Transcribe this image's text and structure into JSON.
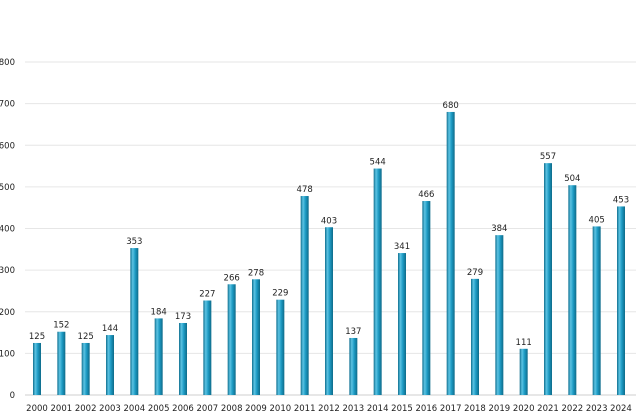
{
  "chart_data": {
    "type": "bar",
    "categories": [
      "2000",
      "2001",
      "2002",
      "2003",
      "2004",
      "2005",
      "2006",
      "2007",
      "2008",
      "2009",
      "2010",
      "2011",
      "2012",
      "2013",
      "2014",
      "2015",
      "2016",
      "2017",
      "2018",
      "2019",
      "2020",
      "2021",
      "2022",
      "2023",
      "2024"
    ],
    "values": [
      125,
      152,
      125,
      144,
      353,
      184,
      173,
      227,
      266,
      278,
      229,
      478,
      403,
      137,
      544,
      341,
      466,
      680,
      279,
      384,
      111,
      557,
      504,
      405,
      453
    ],
    "data_labels": [
      "125",
      "152",
      "125",
      "144",
      "353",
      "184",
      "173",
      "227",
      "266",
      "278",
      "229",
      "478",
      "403",
      "137",
      "544",
      "341",
      "466",
      "680",
      "279",
      "384",
      "111",
      "557",
      "504",
      "405",
      "453"
    ],
    "ylim": [
      0,
      800
    ],
    "yticks": [
      "0",
      "100",
      "200",
      "300",
      "400",
      "500",
      "600",
      "700",
      "800"
    ],
    "grid": true,
    "colors": {
      "bar_main": "#1d9bc4",
      "bar_light": "#5cc3e3",
      "bar_dark": "#0f6f8f"
    }
  }
}
